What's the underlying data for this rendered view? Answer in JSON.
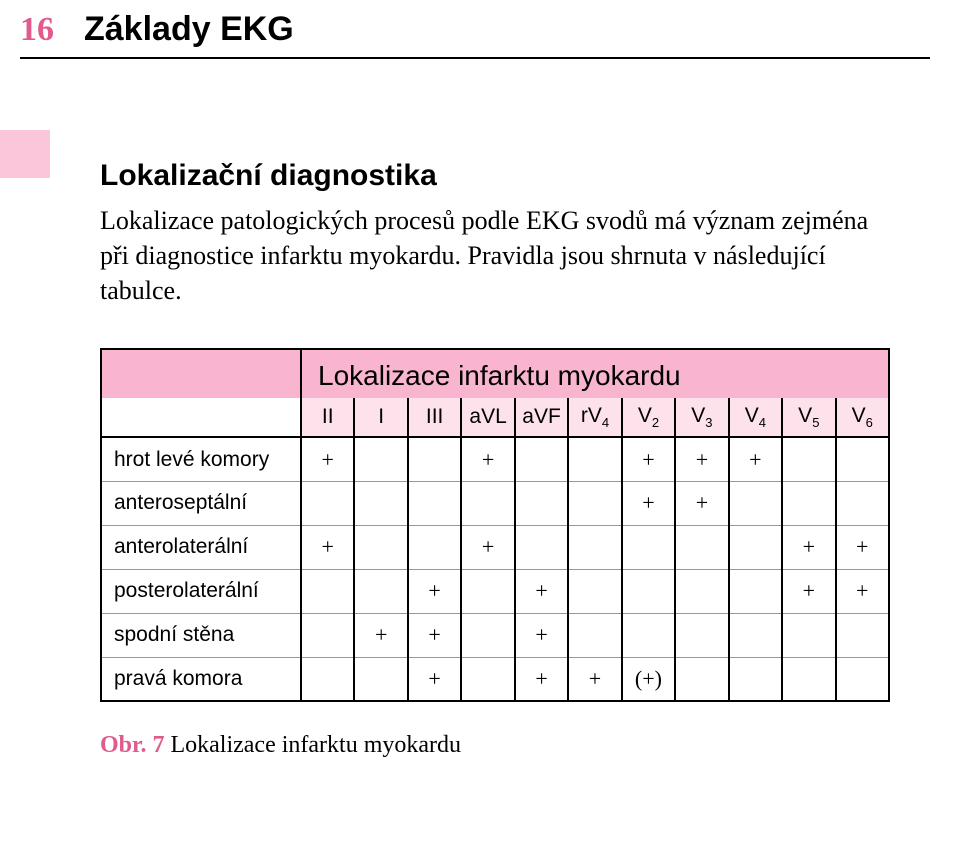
{
  "pageNumber": "16",
  "bookTitle": "Základy EKG",
  "sectionHeading": "Lokalizační diagnostika",
  "bodyText": "Lokalizace patologických procesů podle EKG svodů má význam zejména při diagnostice infarktu myokardu. Pravidla jsou shrnuta v následující tabulce.",
  "table": {
    "title": "Lokalizace infarktu myokardu",
    "columns": [
      "II",
      "I",
      "III",
      "aVL",
      "aVF",
      "rV4",
      "V2",
      "V3",
      "V4",
      "V5",
      "V6"
    ],
    "rows": [
      {
        "label": "hrot levé komory",
        "cells": [
          "+",
          "",
          "",
          "+",
          "",
          "",
          "+",
          "+",
          "+",
          "",
          ""
        ]
      },
      {
        "label": "anteroseptální",
        "cells": [
          "",
          "",
          "",
          "",
          "",
          "",
          "+",
          "+",
          "",
          "",
          ""
        ]
      },
      {
        "label": "anterolaterální",
        "cells": [
          "+",
          "",
          "",
          "+",
          "",
          "",
          "",
          "",
          "",
          "+",
          "+"
        ]
      },
      {
        "label": "posterolaterální",
        "cells": [
          "",
          "",
          "+",
          "",
          "+",
          "",
          "",
          "",
          "",
          "+",
          "+"
        ]
      },
      {
        "label": "spodní stěna",
        "cells": [
          "",
          "+",
          "+",
          "",
          "+",
          "",
          "",
          "",
          "",
          "",
          ""
        ]
      },
      {
        "label": "pravá komora",
        "cells": [
          "",
          "",
          "+",
          "",
          "+",
          "+",
          "(+)",
          "",
          "",
          "",
          ""
        ]
      }
    ]
  },
  "caption": {
    "prefix": "Obr. 7",
    "text": " Lokalizace infarktu myokardu"
  },
  "colors": {
    "accentPink": "#e05a8e",
    "tabPink": "#fbc6da",
    "headerPink": "#f9b5cf",
    "subheaderPink": "#fde1eb"
  }
}
